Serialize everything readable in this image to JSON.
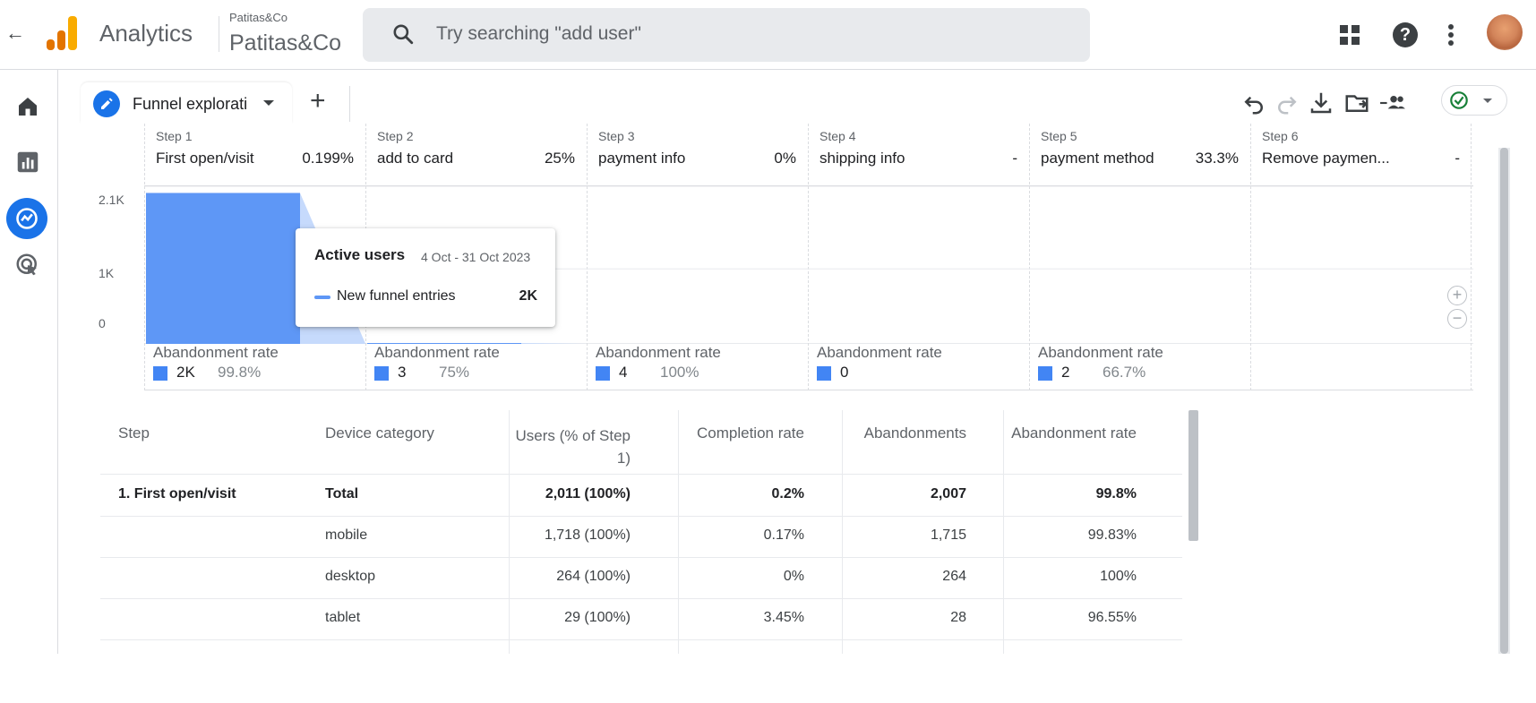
{
  "header": {
    "app_name": "Analytics",
    "account_small": "Patitas&Co",
    "account_big": "Patitas&Co",
    "search_placeholder": "Try searching \"add user\""
  },
  "tabs": {
    "active_tab_label": "Funnel explorati"
  },
  "funnel": {
    "steps": [
      {
        "num": "Step 1",
        "name": "First open/visit",
        "pct": "0.199%",
        "abandon_label": "Abandonment rate",
        "abandon_count": "2K",
        "abandon_rate": "99.8%"
      },
      {
        "num": "Step 2",
        "name": "add to card",
        "pct": "25%",
        "abandon_label": "Abandonment rate",
        "abandon_count": "3",
        "abandon_rate": "75%"
      },
      {
        "num": "Step 3",
        "name": "payment info",
        "pct": "0%",
        "abandon_label": "Abandonment rate",
        "abandon_count": "4",
        "abandon_rate": "100%"
      },
      {
        "num": "Step 4",
        "name": "shipping info",
        "pct": "-",
        "abandon_label": "Abandonment rate",
        "abandon_count": "0",
        "abandon_rate": ""
      },
      {
        "num": "Step 5",
        "name": "payment method",
        "pct": "33.3%",
        "abandon_label": "Abandonment rate",
        "abandon_count": "2",
        "abandon_rate": "66.7%"
      },
      {
        "num": "Step 6",
        "name": "Remove paymen...",
        "pct": "-"
      }
    ],
    "y_ticks": [
      "2.1K",
      "1K",
      "0"
    ],
    "tooltip": {
      "title": "Active users",
      "dates": "4 Oct - 31 Oct 2023",
      "series_name": "New funnel entries",
      "series_value": "2K"
    },
    "colors": {
      "bar": "#5e97f6",
      "legend": "#4285f4",
      "accent": "#1a73e8"
    }
  },
  "chart_data": {
    "type": "bar",
    "categories": [
      "First open/visit",
      "add to card",
      "payment info",
      "shipping info",
      "payment method",
      "Remove paymen..."
    ],
    "series": [
      {
        "name": "New funnel entries",
        "values": [
          2011,
          4,
          0,
          0,
          0,
          0
        ]
      }
    ],
    "ylim": [
      0,
      2100
    ],
    "y_ticks": [
      "2.1K",
      "1K",
      "0"
    ]
  },
  "table": {
    "headers": [
      "Step",
      "Device category",
      "Users (% of Step 1)",
      "Completion rate",
      "Abandonments",
      "Abandonment rate"
    ],
    "rows": [
      {
        "step": "1. First open/visit",
        "device": "Total",
        "users": "2,011 (100%)",
        "completion": "0.2%",
        "abandonments": "2,007",
        "abandon_rate": "99.8%"
      },
      {
        "step": "",
        "device": "mobile",
        "users": "1,718 (100%)",
        "completion": "0.17%",
        "abandonments": "1,715",
        "abandon_rate": "99.83%"
      },
      {
        "step": "",
        "device": "desktop",
        "users": "264 (100%)",
        "completion": "0%",
        "abandonments": "264",
        "abandon_rate": "100%"
      },
      {
        "step": "",
        "device": "tablet",
        "users": "29 (100%)",
        "completion": "3.45%",
        "abandonments": "28",
        "abandon_rate": "96.55%"
      }
    ]
  }
}
